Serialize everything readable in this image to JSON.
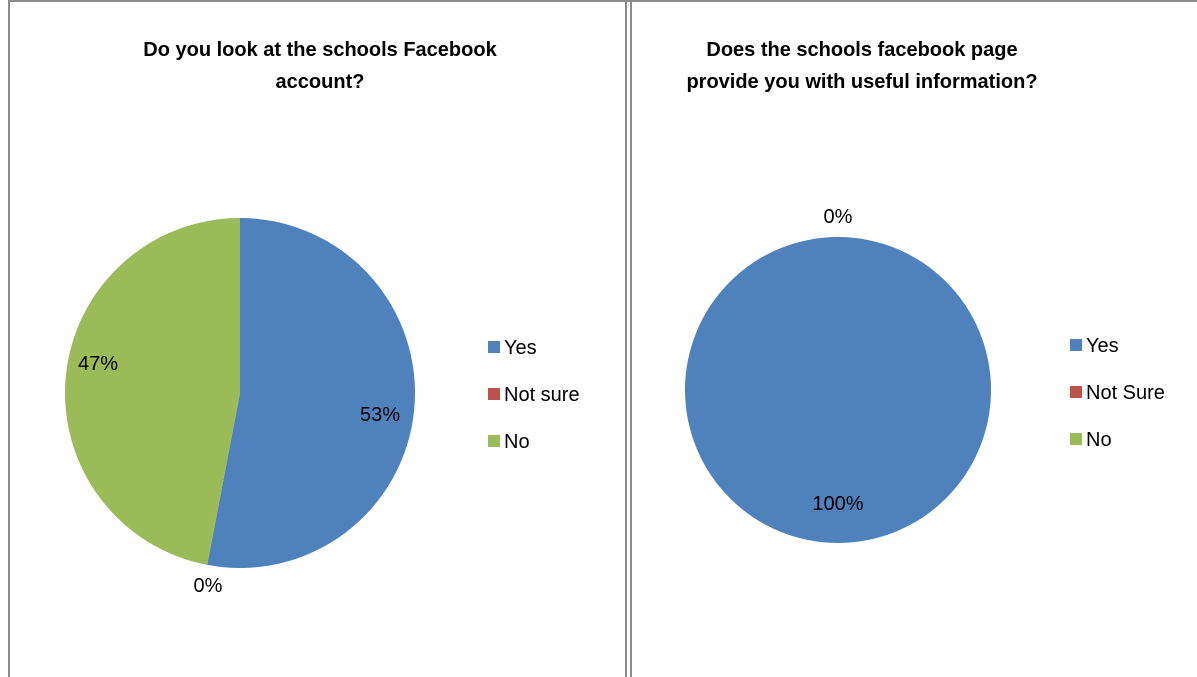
{
  "chart_data": [
    {
      "type": "pie",
      "title_lines": [
        "Do you look at the schools Facebook",
        "account?"
      ],
      "categories": [
        "Yes",
        "Not sure",
        "No"
      ],
      "values": [
        53,
        0,
        47
      ],
      "labels": [
        "53%",
        "0%",
        "47%"
      ],
      "colors": [
        "#4f81bd",
        "#c0504d",
        "#9bbb59"
      ],
      "legend_position": "right"
    },
    {
      "type": "pie",
      "title_lines": [
        "Does the schools facebook page",
        "provide you with useful information?"
      ],
      "categories": [
        "Yes",
        "Not Sure",
        "No"
      ],
      "values": [
        100,
        0,
        0
      ],
      "labels": [
        "100%",
        "0%",
        ""
      ],
      "colors": [
        "#4f81bd",
        "#c0504d",
        "#9bbb59"
      ],
      "legend_position": "right"
    }
  ]
}
